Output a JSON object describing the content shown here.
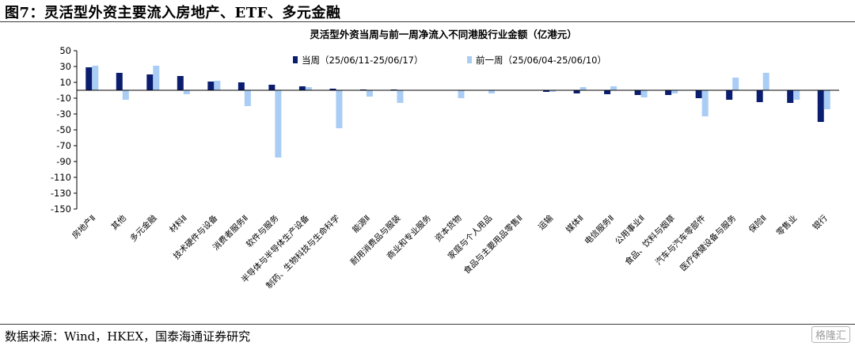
{
  "figure": {
    "title": "图7：灵活型外资主要流入房地产、ETF、多元金融",
    "source": "数据来源：Wind，HKEX，国泰海通证券研究",
    "watermark": "格隆汇"
  },
  "colors": {
    "current": "#0b1d6e",
    "previous": "#a9cdf5",
    "axis": "#000000"
  },
  "chart_data": {
    "type": "bar",
    "title": "灵活型外资当周与前一周净流入不同港股行业金额（亿港元）",
    "ylim": [
      -150,
      50
    ],
    "yticks": [
      50,
      30,
      10,
      -10,
      -30,
      -50,
      -70,
      -90,
      -110,
      -130,
      -150
    ],
    "ylabel": "",
    "xlabel": "",
    "legend": "top",
    "grid": false,
    "categories": [
      "房地产Ⅱ",
      "其他",
      "多元金融",
      "材料Ⅱ",
      "技术硬件与设备",
      "消费者服务Ⅱ",
      "软件与服务",
      "半导体与半导体生产设备",
      "制药、生物科技与生命科学",
      "能源Ⅱ",
      "耐用消费品与服装",
      "商业和专业服务",
      "资本货物",
      "家庭与个人用品",
      "食品与主要用品零售Ⅱ",
      "运输",
      "媒体Ⅱ",
      "电信服务Ⅱ",
      "公用事业Ⅱ",
      "食品、饮料与烟草",
      "汽车与汽车零部件",
      "医疗保健设备与服务",
      "保险Ⅱ",
      "零售业",
      "银行"
    ],
    "series": [
      {
        "name": "当周（25/06/11-25/06/17）",
        "values": [
          29,
          22,
          20,
          18,
          11,
          10,
          7,
          5,
          2,
          1,
          1,
          0,
          0,
          0,
          0,
          -2,
          -4,
          -5,
          -6,
          -6,
          -10,
          -12,
          -15,
          -16,
          -40
        ]
      },
      {
        "name": "前一周（25/06/04-25/06/10）",
        "values": [
          31,
          -12,
          31,
          -5,
          12,
          -20,
          -85,
          4,
          -48,
          -8,
          -16,
          0,
          -10,
          -4,
          0,
          -2,
          4,
          5,
          -9,
          -4,
          -33,
          16,
          22,
          -12,
          -24
        ]
      }
    ]
  }
}
